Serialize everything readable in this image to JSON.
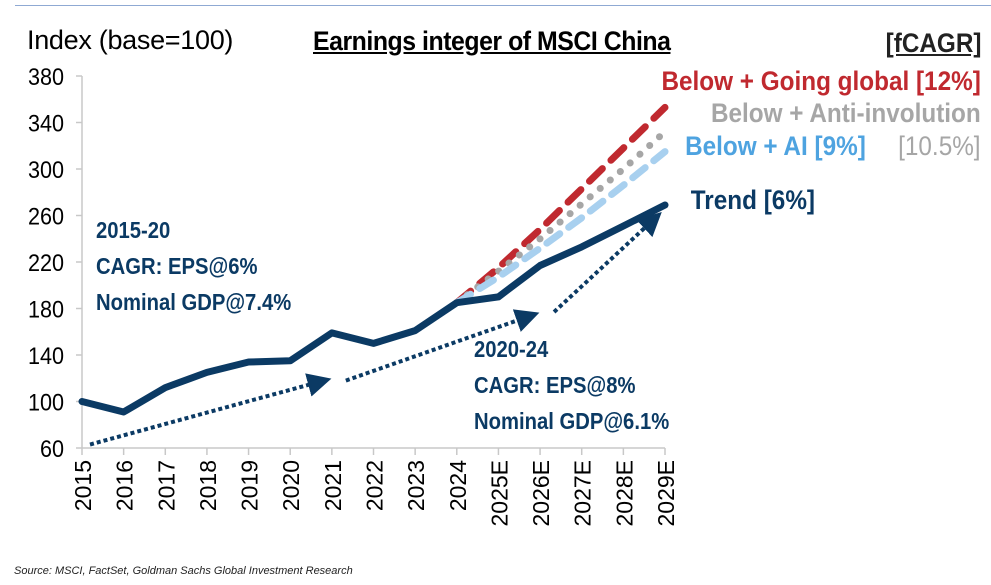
{
  "header": {
    "y_axis_label": "Index (base=100)",
    "title": "Earnings integer of MSCI China",
    "legend_header": "[fCAGR]"
  },
  "legend": {
    "going_global": "Below + Going global [12%]",
    "anti_involution": "Below + Anti-involution",
    "anti_involution_rate": "[10.5%]",
    "ai": "Below + AI [9%]",
    "trend": "Trend [6%]"
  },
  "annotations": {
    "period1": [
      "2015-20",
      "CAGR: EPS@6%",
      "Nominal GDP@7.4%"
    ],
    "period2": [
      "2020-24",
      "CAGR: EPS@8%",
      "Nominal GDP@6.1%"
    ]
  },
  "source": "Source: MSCI, FactSet, Goldman Sachs Global Investment Research",
  "colors": {
    "trend": "#0b3a64",
    "going_global": "#c0292f",
    "anti_involution": "#a6a6a6",
    "ai": "#a8d0ef",
    "ai_text": "#4ea3e0",
    "axis": "#c8c8c8"
  },
  "chart_data": {
    "type": "line",
    "title": "Earnings integer of MSCI China",
    "xlabel": "",
    "ylabel": "Index (base=100)",
    "ylim": [
      60,
      380
    ],
    "yticks": [
      60,
      100,
      140,
      180,
      220,
      260,
      300,
      340,
      380
    ],
    "grid": false,
    "legend_placement": "top-right",
    "categories": [
      "2015",
      "2016",
      "2017",
      "2018",
      "2019",
      "2020",
      "2021",
      "2022",
      "2023",
      "2024",
      "2025E",
      "2026E",
      "2027E",
      "2028E",
      "2029E"
    ],
    "series": [
      {
        "name": "Trend [6%]",
        "style": "solid",
        "values": [
          100,
          91,
          112,
          125,
          134,
          135,
          159,
          150,
          161,
          185,
          190,
          217,
          233,
          251,
          269
        ]
      },
      {
        "name": "Below + AI [9%]",
        "style": "dashed",
        "values": [
          null,
          null,
          null,
          null,
          null,
          null,
          null,
          null,
          null,
          185,
          207,
          232,
          258,
          286,
          315
        ]
      },
      {
        "name": "Below + Anti-involution [10.5%]",
        "style": "dotted",
        "values": [
          null,
          null,
          null,
          null,
          null,
          null,
          null,
          null,
          null,
          185,
          212,
          240,
          270,
          300,
          332
        ]
      },
      {
        "name": "Below + Going global [12%]",
        "style": "dashed",
        "values": [
          null,
          null,
          null,
          null,
          null,
          null,
          null,
          null,
          null,
          185,
          215,
          248,
          283,
          318,
          353
        ]
      }
    ],
    "trend_arrows": [
      {
        "from": [
          "2015",
          63
        ],
        "to": [
          "2021",
          117
        ]
      },
      {
        "from": [
          "2021",
          118
        ],
        "to": [
          "2026E",
          173
        ]
      },
      {
        "from": [
          "2026E",
          177
        ],
        "to": [
          "2029E",
          256
        ]
      }
    ],
    "annotations": [
      "2015-20 CAGR: EPS@6% Nominal GDP@7.4%",
      "2020-24 CAGR: EPS@8% Nominal GDP@6.1%"
    ]
  }
}
